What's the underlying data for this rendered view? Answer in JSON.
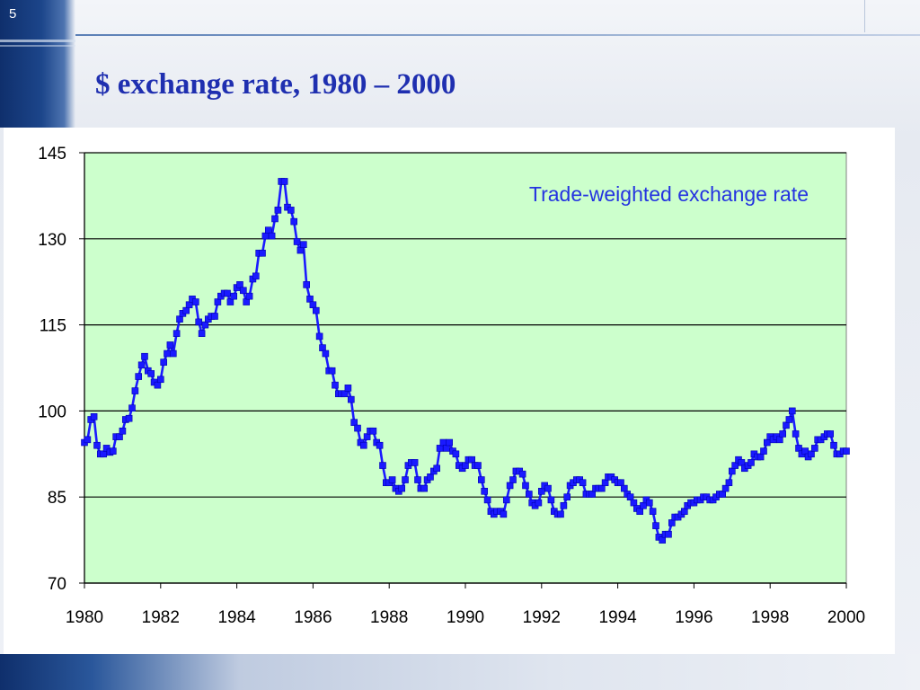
{
  "slide": {
    "number": "5",
    "title": "$ exchange rate, 1980 – 2000"
  },
  "colors": {
    "title": "#1f2fb0",
    "series": "#1a1aff",
    "plot_background": "#ccffcc",
    "band_dark": "#0f2f6c"
  },
  "chart_data": {
    "type": "line",
    "title": "",
    "xlabel": "",
    "ylabel": "",
    "xlim": [
      1980,
      2000
    ],
    "ylim": [
      70,
      145
    ],
    "x_ticks": [
      "1980",
      "1982",
      "1984",
      "1986",
      "1988",
      "1990",
      "1992",
      "1994",
      "1996",
      "1998",
      "2000"
    ],
    "y_ticks": [
      "70",
      "85",
      "100",
      "115",
      "130",
      "145"
    ],
    "grid": "horizontal",
    "annotation": "Trade-weighted exchange rate",
    "series": [
      {
        "name": "",
        "marker": "square",
        "x": [
          1980.0,
          1980.08,
          1980.17,
          1980.25,
          1980.33,
          1980.42,
          1980.5,
          1980.58,
          1980.67,
          1980.75,
          1980.83,
          1980.92,
          1981.0,
          1981.08,
          1981.17,
          1981.25,
          1981.33,
          1981.42,
          1981.5,
          1981.58,
          1981.67,
          1981.75,
          1981.83,
          1981.92,
          1982.0,
          1982.08,
          1982.17,
          1982.25,
          1982.33,
          1982.42,
          1982.5,
          1982.58,
          1982.67,
          1982.75,
          1982.83,
          1982.92,
          1983.0,
          1983.08,
          1983.17,
          1983.25,
          1983.33,
          1983.42,
          1983.5,
          1983.58,
          1983.67,
          1983.75,
          1983.83,
          1983.92,
          1984.0,
          1984.08,
          1984.17,
          1984.25,
          1984.33,
          1984.42,
          1984.5,
          1984.58,
          1984.67,
          1984.75,
          1984.83,
          1984.92,
          1985.0,
          1985.08,
          1985.17,
          1985.25,
          1985.33,
          1985.42,
          1985.5,
          1985.58,
          1985.67,
          1985.75,
          1985.83,
          1985.92,
          1986.0,
          1986.08,
          1986.17,
          1986.25,
          1986.33,
          1986.42,
          1986.5,
          1986.58,
          1986.67,
          1986.75,
          1986.83,
          1986.92,
          1987.0,
          1987.08,
          1987.17,
          1987.25,
          1987.33,
          1987.42,
          1987.5,
          1987.58,
          1987.67,
          1987.75,
          1987.83,
          1987.92,
          1988.0,
          1988.08,
          1988.17,
          1988.25,
          1988.33,
          1988.42,
          1988.5,
          1988.58,
          1988.67,
          1988.75,
          1988.83,
          1988.92,
          1989.0,
          1989.08,
          1989.17,
          1989.25,
          1989.33,
          1989.42,
          1989.5,
          1989.58,
          1989.67,
          1989.75,
          1989.83,
          1989.92,
          1990.0,
          1990.08,
          1990.17,
          1990.25,
          1990.33,
          1990.42,
          1990.5,
          1990.58,
          1990.67,
          1990.75,
          1990.83,
          1990.92,
          1991.0,
          1991.08,
          1991.17,
          1991.25,
          1991.33,
          1991.42,
          1991.5,
          1991.58,
          1991.67,
          1991.75,
          1991.83,
          1991.92,
          1992.0,
          1992.08,
          1992.17,
          1992.25,
          1992.33,
          1992.42,
          1992.5,
          1992.58,
          1992.67,
          1992.75,
          1992.83,
          1992.92,
          1993.0,
          1993.08,
          1993.17,
          1993.25,
          1993.33,
          1993.42,
          1993.5,
          1993.58,
          1993.67,
          1993.75,
          1993.83,
          1993.92,
          1994.0,
          1994.08,
          1994.17,
          1994.25,
          1994.33,
          1994.42,
          1994.5,
          1994.58,
          1994.67,
          1994.75,
          1994.83,
          1994.92,
          1995.0,
          1995.08,
          1995.17,
          1995.25,
          1995.33,
          1995.42,
          1995.5,
          1995.58,
          1995.67,
          1995.75,
          1995.83,
          1995.92,
          1996.0,
          1996.08,
          1996.17,
          1996.25,
          1996.33,
          1996.42,
          1996.5,
          1996.58,
          1996.67,
          1996.75,
          1996.83,
          1996.92,
          1997.0,
          1997.08,
          1997.17,
          1997.25,
          1997.33,
          1997.42,
          1997.5,
          1997.58,
          1997.67,
          1997.75,
          1997.83,
          1997.92,
          1998.0,
          1998.08,
          1998.17,
          1998.25,
          1998.33,
          1998.42,
          1998.5,
          1998.58,
          1998.67,
          1998.75,
          1998.83,
          1998.92,
          1999.0,
          1999.08,
          1999.17,
          1999.25,
          1999.33,
          1999.42,
          1999.5,
          1999.58,
          1999.67,
          1999.75,
          1999.83,
          1999.92,
          2000.0
        ],
        "values": [
          94.5,
          95.0,
          98.5,
          99.0,
          94.0,
          92.5,
          92.5,
          93.5,
          92.8,
          93.0,
          95.5,
          95.5,
          96.5,
          98.5,
          98.7,
          100.5,
          103.5,
          106.0,
          108.0,
          109.5,
          107.0,
          106.5,
          105.0,
          104.5,
          105.5,
          108.5,
          110.0,
          111.5,
          110.0,
          113.5,
          116.0,
          117.0,
          117.5,
          118.5,
          119.5,
          119.0,
          115.5,
          113.5,
          115.0,
          116.0,
          116.5,
          116.5,
          119.0,
          120.0,
          120.5,
          120.5,
          119.0,
          120.0,
          121.5,
          122.0,
          121.0,
          119.0,
          120.0,
          123.0,
          123.5,
          127.5,
          127.5,
          130.5,
          131.5,
          130.5,
          133.5,
          135.0,
          140.0,
          140.0,
          135.5,
          135.0,
          133.0,
          129.5,
          128.0,
          129.0,
          122.0,
          119.5,
          118.5,
          117.5,
          113.0,
          111.0,
          110.0,
          107.0,
          107.0,
          104.5,
          103.0,
          103.0,
          103.0,
          104.0,
          102.0,
          98.0,
          97.0,
          94.5,
          94.0,
          95.5,
          96.5,
          96.5,
          94.5,
          94.0,
          90.5,
          87.5,
          87.5,
          88.0,
          86.5,
          86.0,
          86.5,
          88.0,
          90.5,
          91.0,
          91.0,
          88.0,
          86.5,
          86.5,
          88.0,
          88.5,
          89.5,
          90.0,
          93.5,
          94.5,
          93.5,
          94.5,
          93.0,
          92.5,
          90.5,
          90.0,
          90.5,
          91.5,
          91.5,
          90.5,
          90.5,
          88.0,
          86.0,
          84.5,
          82.5,
          82.0,
          82.5,
          82.5,
          82.0,
          84.5,
          87.0,
          88.0,
          89.5,
          89.5,
          89.0,
          87.0,
          85.5,
          84.0,
          83.5,
          84.0,
          86.0,
          87.0,
          86.5,
          84.5,
          82.5,
          82.0,
          82.0,
          83.5,
          85.0,
          87.0,
          87.5,
          88.0,
          88.0,
          87.5,
          85.5,
          85.5,
          85.5,
          86.5,
          86.5,
          86.5,
          87.5,
          88.5,
          88.5,
          88.0,
          87.5,
          87.5,
          86.5,
          85.5,
          85.0,
          84.0,
          83.0,
          82.5,
          83.5,
          84.5,
          84.0,
          82.5,
          80.0,
          78.0,
          77.5,
          78.5,
          78.5,
          80.5,
          81.5,
          81.5,
          82.0,
          82.5,
          83.5,
          84.0,
          84.0,
          84.5,
          84.5,
          85.0,
          85.0,
          84.5,
          84.5,
          85.0,
          85.5,
          85.5,
          86.5,
          87.5,
          89.5,
          90.5,
          91.5,
          91.0,
          90.0,
          90.5,
          91.0,
          92.5,
          92.0,
          92.0,
          93.0,
          94.5,
          95.5,
          95.0,
          95.5,
          95.0,
          96.0,
          97.5,
          98.5,
          100.0,
          96.0,
          93.5,
          92.5,
          93.0,
          92.0,
          92.5,
          93.5,
          95.0,
          95.0,
          95.5,
          96.0,
          96.0,
          94.0,
          92.5,
          92.5,
          93.0,
          93.0
        ]
      }
    ]
  }
}
